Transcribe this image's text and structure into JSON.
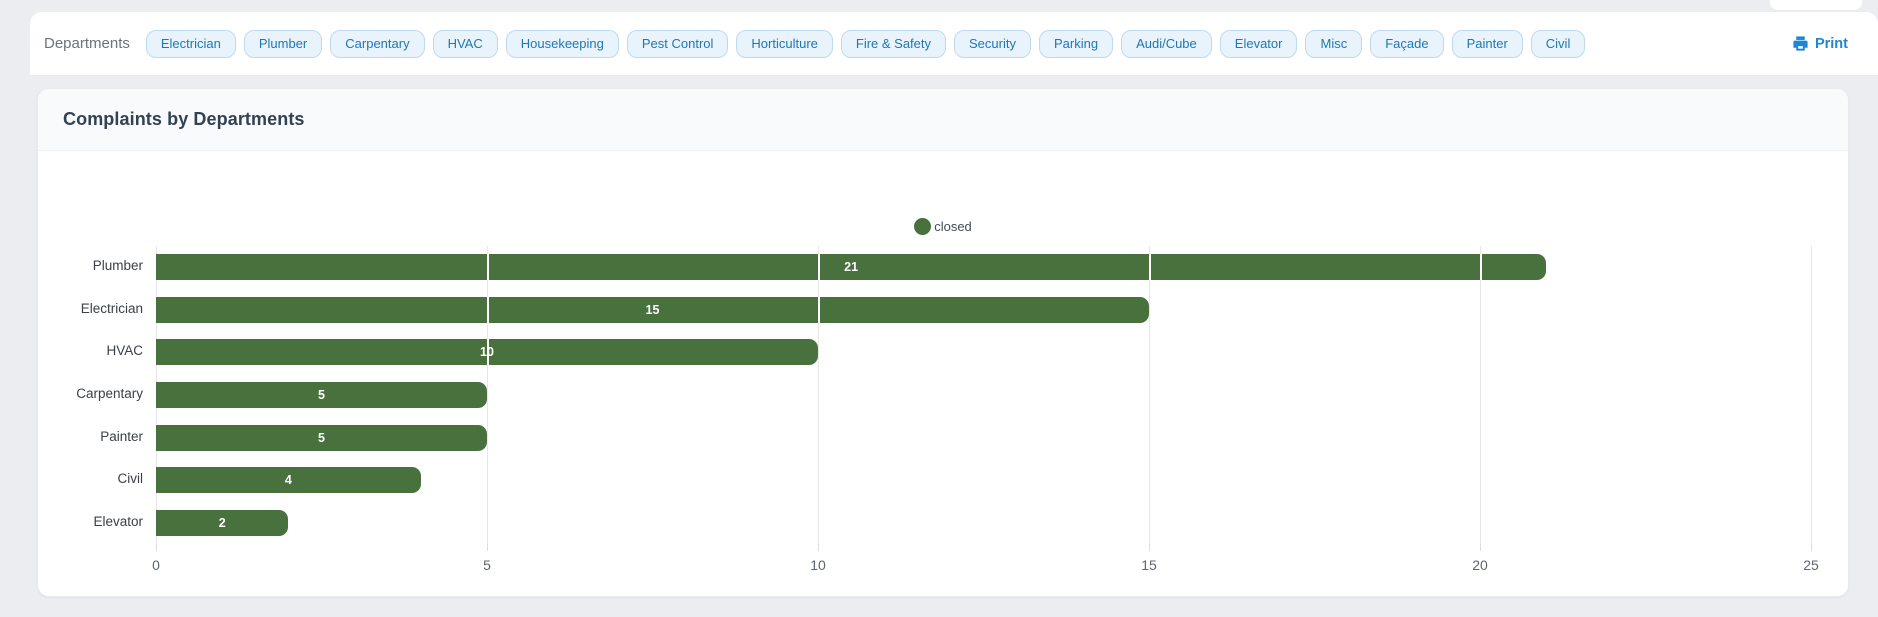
{
  "toolbar": {
    "label": "Departments",
    "chips": [
      "Electrician",
      "Plumber",
      "Carpentary",
      "HVAC",
      "Housekeeping",
      "Pest Control",
      "Horticulture",
      "Fire & Safety",
      "Security",
      "Parking",
      "Audi/Cube",
      "Elevator",
      "Misc",
      "Façade",
      "Painter",
      "Civil"
    ],
    "print_label": "Print"
  },
  "card": {
    "title": "Complaints by Departments"
  },
  "chart_data": {
    "type": "bar",
    "orientation": "horizontal",
    "title": "Complaints by Departments",
    "categories": [
      "Plumber",
      "Electrician",
      "HVAC",
      "Carpentary",
      "Painter",
      "Civil",
      "Elevator"
    ],
    "series": [
      {
        "name": "closed",
        "values": [
          21,
          15,
          10,
          5,
          5,
          4,
          2
        ]
      }
    ],
    "xlabel": "",
    "ylabel": "",
    "xlim": [
      0,
      25
    ],
    "x_ticks": [
      0,
      5,
      10,
      15,
      20,
      25
    ],
    "grid": true,
    "legend_position": "top",
    "colors": {
      "bar": "#48713d",
      "gridline": "#e7e7e7",
      "tick_label": "#5d6570",
      "category_label": "#3a4045",
      "value_label": "#ffffff",
      "chip_text": "#1f77b4",
      "chip_bg": "#e8f3fb",
      "print_blue": "#1d87d6"
    }
  }
}
